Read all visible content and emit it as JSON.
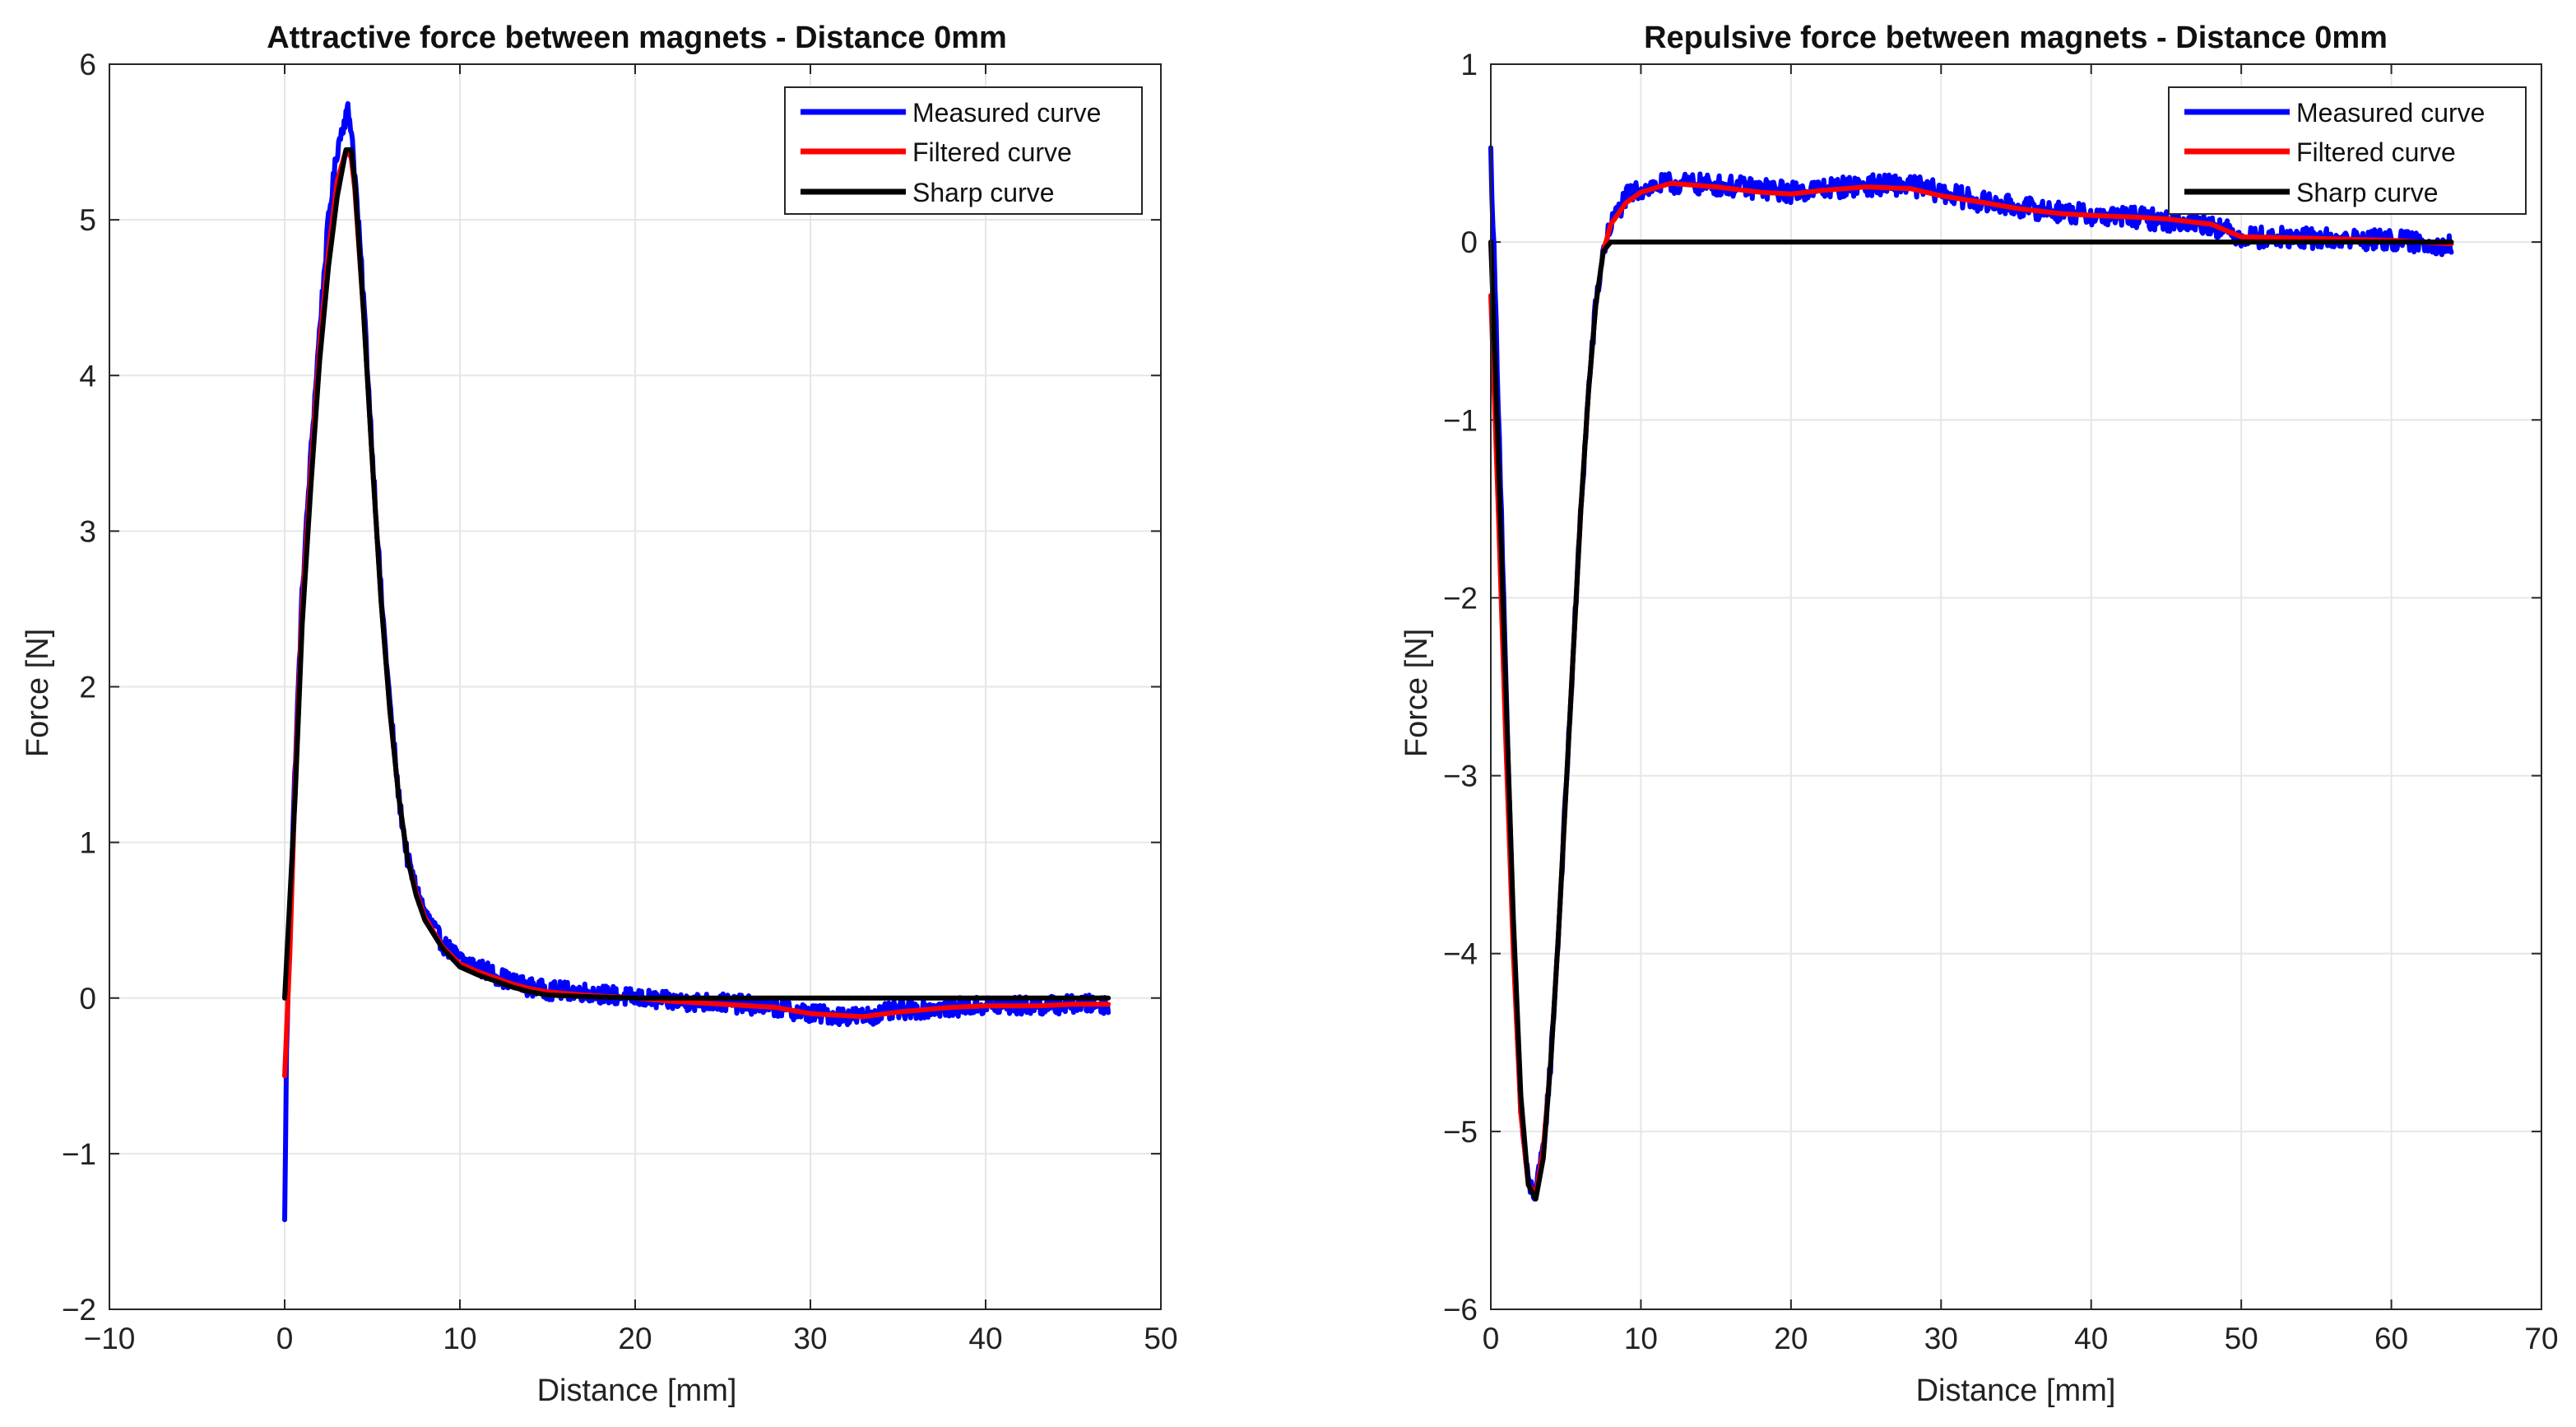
{
  "chart_data": [
    {
      "type": "line",
      "title": "Attractive force between magnets - Distance 0mm",
      "xlabel": "Distance [mm]",
      "ylabel": "Force [N]",
      "xlim": [
        -10,
        50
      ],
      "ylim": [
        -2,
        6
      ],
      "xticks": [
        -10,
        0,
        10,
        20,
        30,
        40,
        50
      ],
      "yticks": [
        -2,
        -1,
        0,
        1,
        2,
        3,
        4,
        5,
        6
      ],
      "xtick_labels": [
        "−10",
        "0",
        "10",
        "20",
        "30",
        "40",
        "50"
      ],
      "ytick_labels": [
        "−2",
        "−1",
        "0",
        "1",
        "2",
        "3",
        "4",
        "5",
        "6"
      ],
      "grid": true,
      "legend_position": "top-right",
      "series": [
        {
          "name": "Measured curve",
          "color": "#0000ff",
          "noise": 0.06,
          "x": [
            0,
            0.1,
            0.3,
            0.6,
            1,
            1.5,
            2,
            2.5,
            3,
            3.3,
            3.6,
            3.8,
            4,
            4.5,
            5,
            5.5,
            6,
            6.5,
            7,
            7.5,
            8,
            9,
            10,
            11,
            12,
            13,
            14,
            15,
            17,
            20,
            22,
            25,
            28,
            30,
            33,
            35,
            38,
            40,
            43,
            45,
            47
          ],
          "y": [
            -1.45,
            -0.4,
            0.5,
            1.5,
            2.6,
            3.5,
            4.3,
            5.0,
            5.45,
            5.6,
            5.7,
            5.6,
            5.3,
            4.5,
            3.5,
            2.6,
            1.9,
            1.3,
            0.9,
            0.7,
            0.55,
            0.35,
            0.25,
            0.2,
            0.15,
            0.1,
            0.07,
            0.05,
            0.04,
            0.0,
            -0.02,
            -0.03,
            -0.06,
            -0.1,
            -0.12,
            -0.08,
            -0.06,
            -0.05,
            -0.05,
            -0.04,
            -0.04
          ]
        },
        {
          "name": "Filtered curve",
          "color": "#ff0000",
          "noise": 0,
          "x": [
            0,
            0.3,
            0.6,
            1,
            1.5,
            2,
            2.5,
            3,
            3.5,
            3.8,
            4,
            4.5,
            5,
            5.5,
            6,
            6.5,
            7,
            7.5,
            8,
            9,
            10,
            11,
            12,
            13,
            14,
            15,
            17,
            20,
            22,
            25,
            28,
            30,
            33,
            35,
            38,
            40,
            43,
            45,
            47
          ],
          "y": [
            -0.5,
            0.3,
            1.4,
            2.5,
            3.4,
            4.2,
            4.8,
            5.25,
            5.45,
            5.4,
            5.2,
            4.4,
            3.45,
            2.55,
            1.85,
            1.3,
            0.9,
            0.68,
            0.52,
            0.33,
            0.22,
            0.17,
            0.13,
            0.09,
            0.06,
            0.04,
            0.02,
            0.0,
            -0.02,
            -0.04,
            -0.06,
            -0.1,
            -0.12,
            -0.09,
            -0.06,
            -0.05,
            -0.05,
            -0.04,
            -0.04
          ]
        },
        {
          "name": "Sharp curve",
          "color": "#000000",
          "noise": 0,
          "x": [
            0,
            0.6,
            1,
            1.5,
            2,
            2.5,
            3,
            3.5,
            3.8,
            4,
            4.5,
            5,
            5.5,
            6,
            6.5,
            7,
            7.5,
            8,
            9,
            10,
            11,
            12,
            13,
            14,
            15,
            17,
            20,
            47
          ],
          "y": [
            0,
            1.3,
            2.4,
            3.3,
            4.1,
            4.7,
            5.15,
            5.45,
            5.45,
            5.25,
            4.4,
            3.45,
            2.55,
            1.85,
            1.3,
            0.9,
            0.66,
            0.5,
            0.32,
            0.2,
            0.15,
            0.11,
            0.07,
            0.04,
            0.02,
            0.01,
            0.0,
            0.0
          ]
        }
      ]
    },
    {
      "type": "line",
      "title": "Repulsive force between magnets - Distance 0mm",
      "xlabel": "Distance [mm]",
      "ylabel": "Force [N]",
      "xlim": [
        0,
        70
      ],
      "ylim": [
        -6,
        1
      ],
      "xticks": [
        0,
        10,
        20,
        30,
        40,
        50,
        60,
        70
      ],
      "yticks": [
        -6,
        -5,
        -4,
        -3,
        -2,
        -1,
        0,
        1
      ],
      "xtick_labels": [
        "0",
        "10",
        "20",
        "30",
        "40",
        "50",
        "60",
        "70"
      ],
      "ytick_labels": [
        "−6",
        "−5",
        "−4",
        "−3",
        "−2",
        "−1",
        "0",
        "1"
      ],
      "grid": true,
      "legend_position": "top-right",
      "series": [
        {
          "name": "Measured curve",
          "color": "#0000ff",
          "noise": 0.06,
          "x": [
            0,
            0.3,
            0.7,
            1,
            1.5,
            2,
            2.5,
            3,
            3.5,
            4,
            4.5,
            5,
            5.5,
            6,
            6.5,
            7,
            7.5,
            8,
            9,
            10,
            12,
            15,
            18,
            20,
            22,
            25,
            28,
            30,
            33,
            35,
            38,
            40,
            43,
            45,
            48,
            50,
            55,
            60,
            64
          ],
          "y": [
            0.5,
            -0.3,
            -1.5,
            -2.5,
            -3.9,
            -4.9,
            -5.3,
            -5.35,
            -5.1,
            -4.6,
            -3.9,
            -3.1,
            -2.3,
            -1.5,
            -0.85,
            -0.35,
            -0.05,
            0.1,
            0.25,
            0.3,
            0.33,
            0.32,
            0.3,
            0.28,
            0.3,
            0.32,
            0.32,
            0.28,
            0.22,
            0.2,
            0.17,
            0.15,
            0.14,
            0.12,
            0.1,
            0.03,
            0.02,
            0.01,
            -0.02
          ]
        },
        {
          "name": "Filtered curve",
          "color": "#ff0000",
          "noise": 0,
          "x": [
            0,
            0.5,
            1,
            1.5,
            2,
            2.5,
            3,
            3.5,
            4,
            4.5,
            5,
            5.5,
            6,
            6.5,
            7,
            7.5,
            8,
            9,
            10,
            12,
            15,
            18,
            20,
            22,
            25,
            28,
            30,
            33,
            35,
            38,
            40,
            43,
            45,
            48,
            50,
            55,
            60,
            64
          ],
          "y": [
            -0.3,
            -1.5,
            -2.8,
            -4.0,
            -4.9,
            -5.3,
            -5.35,
            -5.1,
            -4.6,
            -3.9,
            -3.1,
            -2.3,
            -1.5,
            -0.85,
            -0.35,
            -0.05,
            0.1,
            0.22,
            0.28,
            0.33,
            0.31,
            0.28,
            0.27,
            0.29,
            0.31,
            0.3,
            0.26,
            0.22,
            0.19,
            0.16,
            0.15,
            0.14,
            0.13,
            0.1,
            0.03,
            0.02,
            0.01,
            -0.01
          ]
        },
        {
          "name": "Sharp curve",
          "color": "#000000",
          "noise": 0,
          "x": [
            0,
            0.5,
            1,
            1.5,
            2,
            2.5,
            3,
            3.5,
            4,
            4.5,
            5,
            5.5,
            6,
            6.5,
            7,
            7.5,
            8,
            64
          ],
          "y": [
            0,
            -1.2,
            -2.5,
            -3.8,
            -4.8,
            -5.3,
            -5.38,
            -5.15,
            -4.6,
            -3.9,
            -3.1,
            -2.3,
            -1.5,
            -0.85,
            -0.35,
            -0.05,
            0.0,
            0.0
          ]
        }
      ]
    }
  ]
}
